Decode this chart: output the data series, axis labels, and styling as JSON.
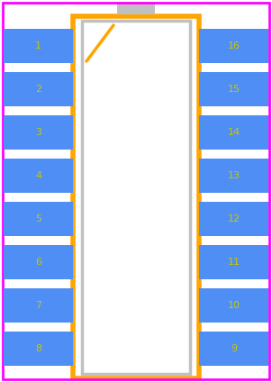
{
  "background": "#ffffff",
  "border_color": "#ff00ff",
  "body_fill": "#ffffff",
  "body_outline_color": "#ffa500",
  "body_inner_outline_color": "#c0c0c0",
  "pin_fill": "#4f8ef5",
  "pin_text_color": "#c8c800",
  "pin_font_size": 8,
  "nub_fill": "#c0c0c0",
  "chamfer_color": "#ffa500",
  "fig_width": 3.02,
  "fig_height": 4.24,
  "dpi": 100,
  "num_pins_per_side": 8,
  "left_pins": [
    1,
    2,
    3,
    4,
    5,
    6,
    7,
    8
  ],
  "right_pins": [
    16,
    15,
    14,
    13,
    12,
    11,
    10,
    9
  ]
}
